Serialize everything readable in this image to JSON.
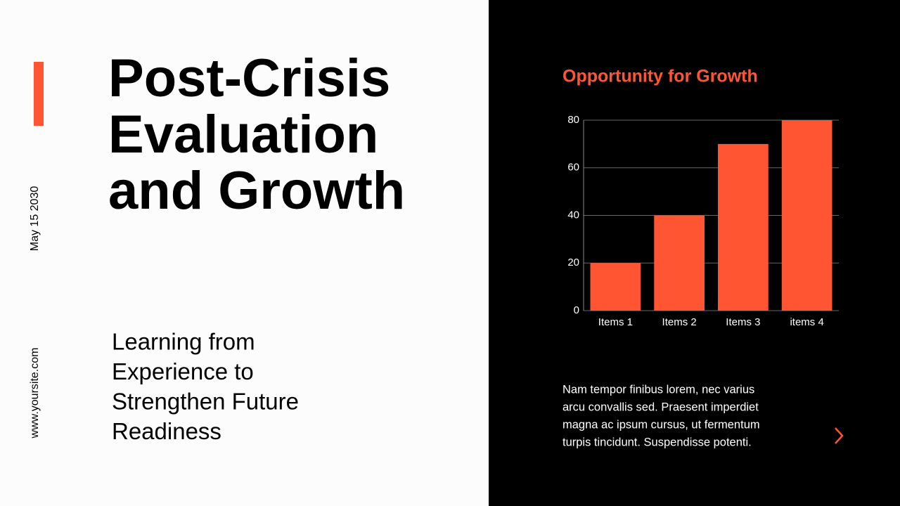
{
  "slide": {
    "title_lines": [
      "Post-Crisis",
      "Evaluation",
      "and Growth"
    ],
    "subtitle_lines": [
      "Learning from",
      "Experience to",
      "Strengthen Future",
      "Readiness"
    ],
    "date": "May 15 2030",
    "website": "www.yoursite.com",
    "body_lines": [
      "Nam tempor finibus lorem, nec varius",
      "arcu convallis sed. Praesent imperdiet",
      "magna ac ipsum cursus, ut fermentum",
      "turpis tincidunt. Suspendisse potenti."
    ]
  },
  "chart_data": {
    "type": "bar",
    "title": "Opportunity for Growth",
    "categories": [
      "Items 1",
      "Items 2",
      "Items 3",
      "items 4"
    ],
    "values": [
      20,
      40,
      70,
      80
    ],
    "color": "#ff5533",
    "ylim": [
      0,
      80
    ],
    "yticks": [
      0,
      20,
      40,
      60,
      80
    ],
    "grid": true
  }
}
